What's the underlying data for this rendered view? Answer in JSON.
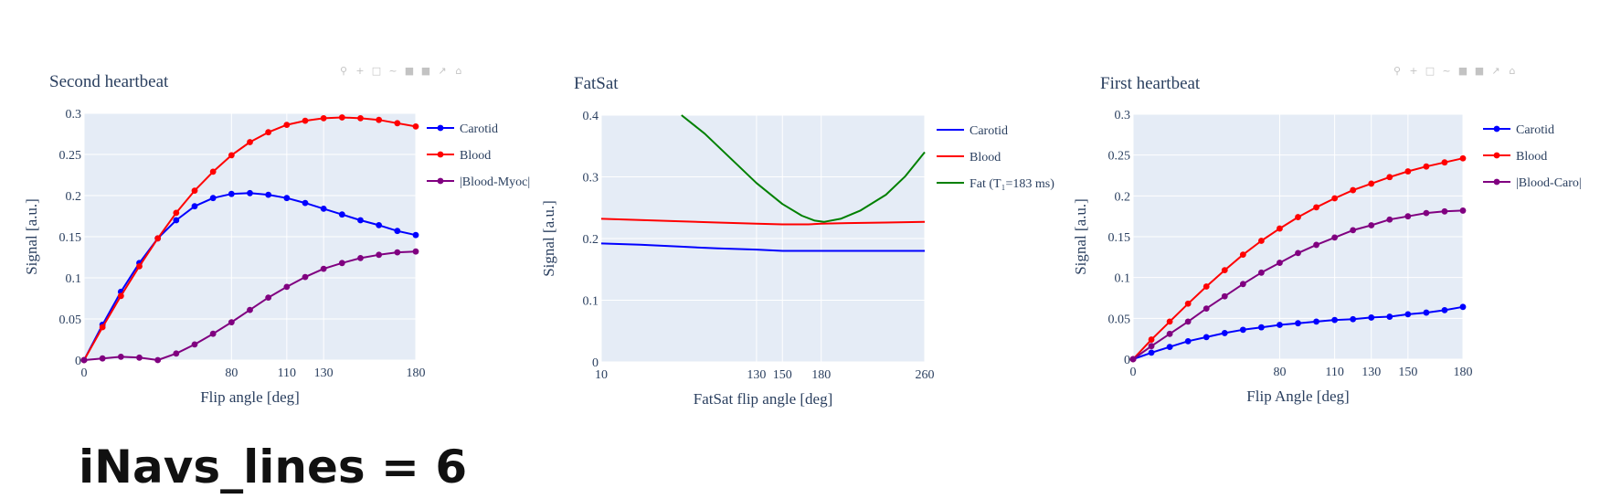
{
  "footer": {
    "label": "iNavs_lines = 6"
  },
  "colors": {
    "blue": "#0000ff",
    "red": "#ff0000",
    "purple": "#800080",
    "green": "#008000",
    "plot_bg": "#e5ecf6",
    "grid": "#ffffff",
    "text": "#2a3f5f"
  },
  "chart_data": [
    {
      "type": "line",
      "title": "Second heartbeat",
      "xlabel": "Flip angle [deg]",
      "ylabel": "Signal [a.u.]",
      "xlim": [
        0,
        180
      ],
      "ylim": [
        0,
        0.3
      ],
      "xticks": [
        0,
        80,
        110,
        130,
        180
      ],
      "yticks": [
        0,
        0.05,
        0.1,
        0.15,
        0.2,
        0.25,
        0.3
      ],
      "ytick_labels": [
        "0",
        "0.05",
        "0.1",
        "0.15",
        "0.2",
        "0.25",
        "0.3"
      ],
      "markers": true,
      "legend_position": "right",
      "series": [
        {
          "name": "Carotid",
          "color": "#0000ff",
          "x": [
            0,
            10,
            20,
            30,
            40,
            50,
            60,
            70,
            80,
            90,
            100,
            110,
            120,
            130,
            140,
            150,
            160,
            170,
            180
          ],
          "y": [
            0,
            0.043,
            0.083,
            0.118,
            0.148,
            0.17,
            0.187,
            0.197,
            0.202,
            0.203,
            0.201,
            0.197,
            0.191,
            0.184,
            0.177,
            0.17,
            0.164,
            0.157,
            0.152
          ]
        },
        {
          "name": "Blood",
          "color": "#ff0000",
          "x": [
            0,
            10,
            20,
            30,
            40,
            50,
            60,
            70,
            80,
            90,
            100,
            110,
            120,
            130,
            140,
            150,
            160,
            170,
            180
          ],
          "y": [
            0,
            0.04,
            0.078,
            0.114,
            0.148,
            0.179,
            0.206,
            0.229,
            0.249,
            0.265,
            0.277,
            0.286,
            0.291,
            0.294,
            0.295,
            0.294,
            0.292,
            0.288,
            0.284
          ]
        },
        {
          "name": "|Blood-Myoc|",
          "color": "#800080",
          "x": [
            0,
            10,
            20,
            30,
            40,
            50,
            60,
            70,
            80,
            90,
            100,
            110,
            120,
            130,
            140,
            150,
            160,
            170,
            180
          ],
          "y": [
            0,
            0.002,
            0.004,
            0.003,
            0.0,
            0.008,
            0.019,
            0.032,
            0.046,
            0.061,
            0.076,
            0.089,
            0.101,
            0.111,
            0.118,
            0.124,
            0.128,
            0.131,
            0.132
          ]
        }
      ]
    },
    {
      "type": "line",
      "title": "FatSat",
      "xlabel": "FatSat flip angle [deg]",
      "ylabel": "Signal [a.u.]",
      "xlim": [
        10,
        260
      ],
      "ylim": [
        0,
        0.4
      ],
      "xticks": [
        10,
        130,
        150,
        180,
        260
      ],
      "yticks": [
        0,
        0.1,
        0.2,
        0.3,
        0.4
      ],
      "ytick_labels": [
        "0",
        "0.1",
        "0.2",
        "0.3",
        "0.4"
      ],
      "markers": false,
      "legend_position": "right",
      "series": [
        {
          "name": "Carotid",
          "color": "#0000ff",
          "x": [
            10,
            40,
            70,
            100,
            130,
            150,
            170,
            180,
            200,
            230,
            260
          ],
          "y": [
            0.192,
            0.19,
            0.187,
            0.184,
            0.182,
            0.18,
            0.18,
            0.18,
            0.18,
            0.18,
            0.18
          ]
        },
        {
          "name": "Blood",
          "color": "#ff0000",
          "x": [
            10,
            40,
            70,
            100,
            130,
            150,
            170,
            180,
            200,
            230,
            260
          ],
          "y": [
            0.232,
            0.23,
            0.228,
            0.226,
            0.224,
            0.223,
            0.223,
            0.224,
            0.225,
            0.226,
            0.227
          ]
        },
        {
          "name": "Fat (T₁=183 ms)",
          "color": "#008000",
          "x": [
            72,
            90,
            110,
            130,
            150,
            165,
            175,
            182,
            195,
            210,
            230,
            245,
            260
          ],
          "y": [
            0.4,
            0.37,
            0.33,
            0.29,
            0.256,
            0.237,
            0.229,
            0.227,
            0.232,
            0.245,
            0.271,
            0.301,
            0.34
          ]
        }
      ]
    },
    {
      "type": "line",
      "title": "First heartbeat",
      "xlabel": "Flip Angle [deg]",
      "ylabel": "Signal [a.u.]",
      "xlim": [
        0,
        180
      ],
      "ylim": [
        0,
        0.3
      ],
      "xticks": [
        0,
        80,
        110,
        130,
        150,
        180
      ],
      "yticks": [
        0,
        0.05,
        0.1,
        0.15,
        0.2,
        0.25,
        0.3
      ],
      "ytick_labels": [
        "0",
        "0.05",
        "0.1",
        "0.15",
        "0.2",
        "0.25",
        "0.3"
      ],
      "markers": true,
      "legend_position": "right",
      "series": [
        {
          "name": "Carotid",
          "color": "#0000ff",
          "x": [
            0,
            10,
            20,
            30,
            40,
            50,
            60,
            70,
            80,
            90,
            100,
            110,
            120,
            130,
            140,
            150,
            160,
            170,
            180
          ],
          "y": [
            0,
            0.008,
            0.015,
            0.022,
            0.027,
            0.032,
            0.036,
            0.039,
            0.042,
            0.044,
            0.046,
            0.048,
            0.049,
            0.051,
            0.052,
            0.055,
            0.057,
            0.06,
            0.064
          ]
        },
        {
          "name": "Blood",
          "color": "#ff0000",
          "x": [
            0,
            10,
            20,
            30,
            40,
            50,
            60,
            70,
            80,
            90,
            100,
            110,
            120,
            130,
            140,
            150,
            160,
            170,
            180
          ],
          "y": [
            0,
            0.024,
            0.046,
            0.068,
            0.089,
            0.109,
            0.128,
            0.145,
            0.16,
            0.174,
            0.186,
            0.197,
            0.207,
            0.215,
            0.223,
            0.23,
            0.236,
            0.241,
            0.246
          ]
        },
        {
          "name": "|Blood-Caro|",
          "color": "#800080",
          "x": [
            0,
            10,
            20,
            30,
            40,
            50,
            60,
            70,
            80,
            90,
            100,
            110,
            120,
            130,
            140,
            150,
            160,
            170,
            180
          ],
          "y": [
            0,
            0.016,
            0.031,
            0.046,
            0.062,
            0.077,
            0.092,
            0.106,
            0.118,
            0.13,
            0.14,
            0.149,
            0.158,
            0.164,
            0.171,
            0.175,
            0.179,
            0.181,
            0.182
          ]
        }
      ]
    }
  ]
}
